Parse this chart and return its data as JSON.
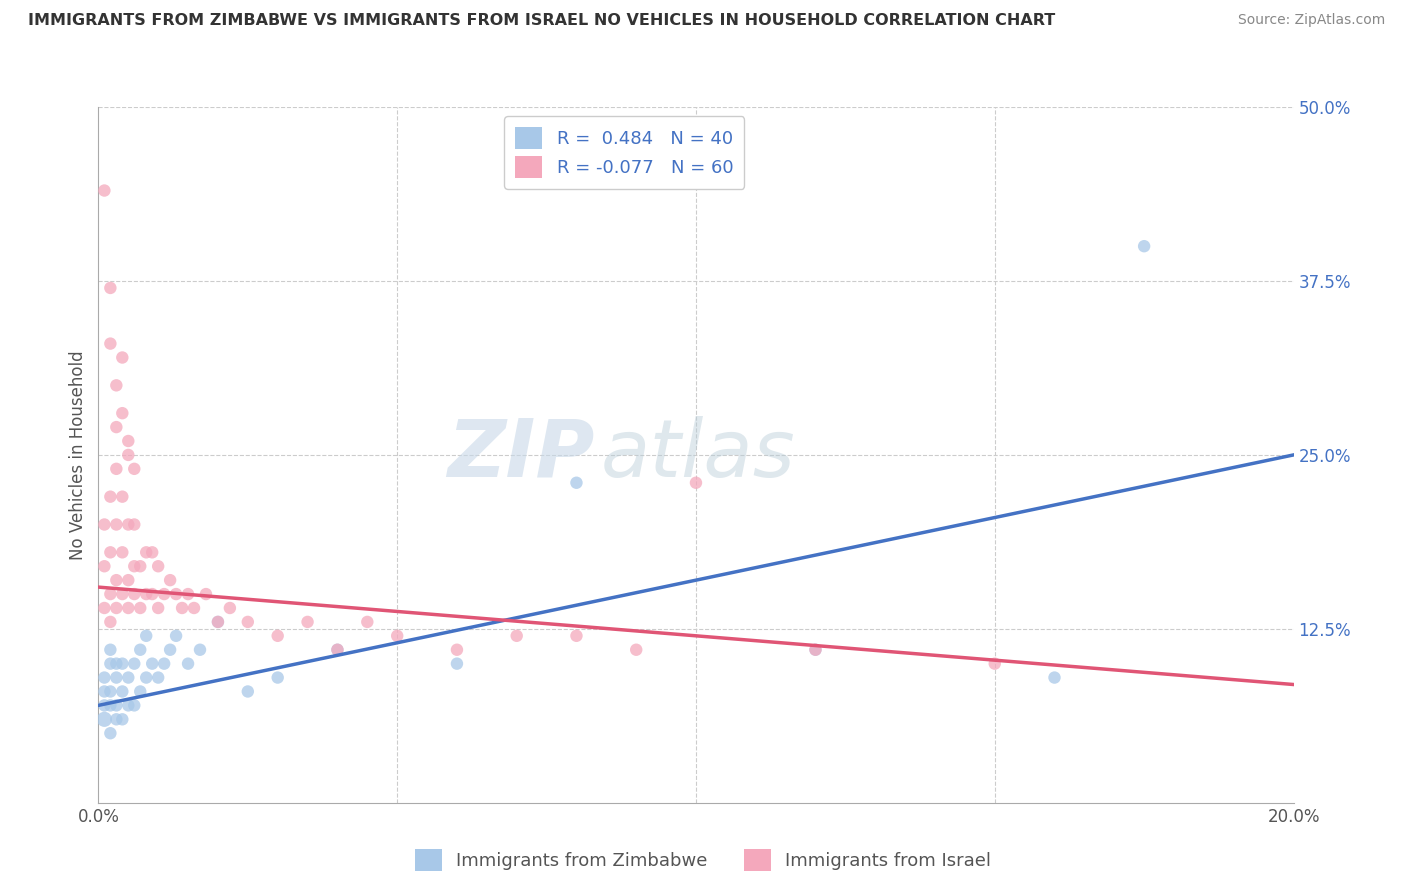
{
  "title": "IMMIGRANTS FROM ZIMBABWE VS IMMIGRANTS FROM ISRAEL NO VEHICLES IN HOUSEHOLD CORRELATION CHART",
  "source": "Source: ZipAtlas.com",
  "ylabel": "No Vehicles in Household",
  "xmin": 0.0,
  "xmax": 0.2,
  "ymin": 0.0,
  "ymax": 0.5,
  "blue_R": 0.484,
  "blue_N": 40,
  "pink_R": -0.077,
  "pink_N": 60,
  "blue_color": "#a8c8e8",
  "pink_color": "#f4a8bc",
  "blue_line_color": "#4472c4",
  "pink_line_color": "#e05575",
  "legend_label_blue": "Immigrants from Zimbabwe",
  "legend_label_pink": "Immigrants from Israel",
  "watermark_zip": "ZIP",
  "watermark_atlas": "atlas",
  "blue_line_x0": 0.0,
  "blue_line_y0": 0.07,
  "blue_line_x1": 0.2,
  "blue_line_y1": 0.25,
  "pink_line_x0": 0.0,
  "pink_line_y0": 0.155,
  "pink_line_x1": 0.2,
  "pink_line_y1": 0.085,
  "blue_scatter_x": [
    0.001,
    0.001,
    0.001,
    0.001,
    0.002,
    0.002,
    0.002,
    0.002,
    0.002,
    0.003,
    0.003,
    0.003,
    0.003,
    0.004,
    0.004,
    0.004,
    0.005,
    0.005,
    0.006,
    0.006,
    0.007,
    0.007,
    0.008,
    0.008,
    0.009,
    0.01,
    0.011,
    0.012,
    0.013,
    0.015,
    0.017,
    0.02,
    0.025,
    0.03,
    0.04,
    0.06,
    0.08,
    0.12,
    0.16,
    0.175
  ],
  "blue_scatter_y": [
    0.06,
    0.07,
    0.08,
    0.09,
    0.05,
    0.07,
    0.08,
    0.1,
    0.11,
    0.06,
    0.07,
    0.09,
    0.1,
    0.06,
    0.08,
    0.1,
    0.07,
    0.09,
    0.07,
    0.1,
    0.08,
    0.11,
    0.09,
    0.12,
    0.1,
    0.09,
    0.1,
    0.11,
    0.12,
    0.1,
    0.11,
    0.13,
    0.08,
    0.09,
    0.11,
    0.1,
    0.23,
    0.11,
    0.09,
    0.4
  ],
  "blue_scatter_size": [
    120,
    80,
    80,
    80,
    80,
    80,
    80,
    80,
    80,
    80,
    80,
    80,
    80,
    80,
    80,
    80,
    80,
    80,
    80,
    80,
    80,
    80,
    80,
    80,
    80,
    80,
    80,
    80,
    80,
    80,
    80,
    80,
    80,
    80,
    80,
    80,
    80,
    80,
    80,
    80
  ],
  "pink_scatter_x": [
    0.001,
    0.001,
    0.001,
    0.002,
    0.002,
    0.002,
    0.002,
    0.003,
    0.003,
    0.003,
    0.003,
    0.004,
    0.004,
    0.004,
    0.005,
    0.005,
    0.005,
    0.006,
    0.006,
    0.006,
    0.007,
    0.007,
    0.008,
    0.008,
    0.009,
    0.009,
    0.01,
    0.01,
    0.011,
    0.012,
    0.013,
    0.014,
    0.015,
    0.016,
    0.018,
    0.02,
    0.022,
    0.025,
    0.03,
    0.035,
    0.04,
    0.045,
    0.05,
    0.06,
    0.07,
    0.08,
    0.09,
    0.1,
    0.12,
    0.15,
    0.001,
    0.002,
    0.003,
    0.004,
    0.005,
    0.006,
    0.002,
    0.003,
    0.004,
    0.005
  ],
  "pink_scatter_y": [
    0.14,
    0.17,
    0.2,
    0.13,
    0.15,
    0.18,
    0.22,
    0.14,
    0.16,
    0.2,
    0.24,
    0.15,
    0.18,
    0.22,
    0.14,
    0.16,
    0.2,
    0.15,
    0.17,
    0.2,
    0.14,
    0.17,
    0.15,
    0.18,
    0.15,
    0.18,
    0.14,
    0.17,
    0.15,
    0.16,
    0.15,
    0.14,
    0.15,
    0.14,
    0.15,
    0.13,
    0.14,
    0.13,
    0.12,
    0.13,
    0.11,
    0.13,
    0.12,
    0.11,
    0.12,
    0.12,
    0.11,
    0.23,
    0.11,
    0.1,
    0.44,
    0.37,
    0.3,
    0.28,
    0.26,
    0.24,
    0.33,
    0.27,
    0.32,
    0.25
  ],
  "pink_scatter_size": [
    80,
    80,
    80,
    80,
    80,
    80,
    80,
    80,
    80,
    80,
    80,
    80,
    80,
    80,
    80,
    80,
    80,
    80,
    80,
    80,
    80,
    80,
    80,
    80,
    80,
    80,
    80,
    80,
    80,
    80,
    80,
    80,
    80,
    80,
    80,
    80,
    80,
    80,
    80,
    80,
    80,
    80,
    80,
    80,
    80,
    80,
    80,
    80,
    80,
    80,
    80,
    80,
    80,
    80,
    80,
    80,
    80,
    80,
    80,
    80
  ]
}
